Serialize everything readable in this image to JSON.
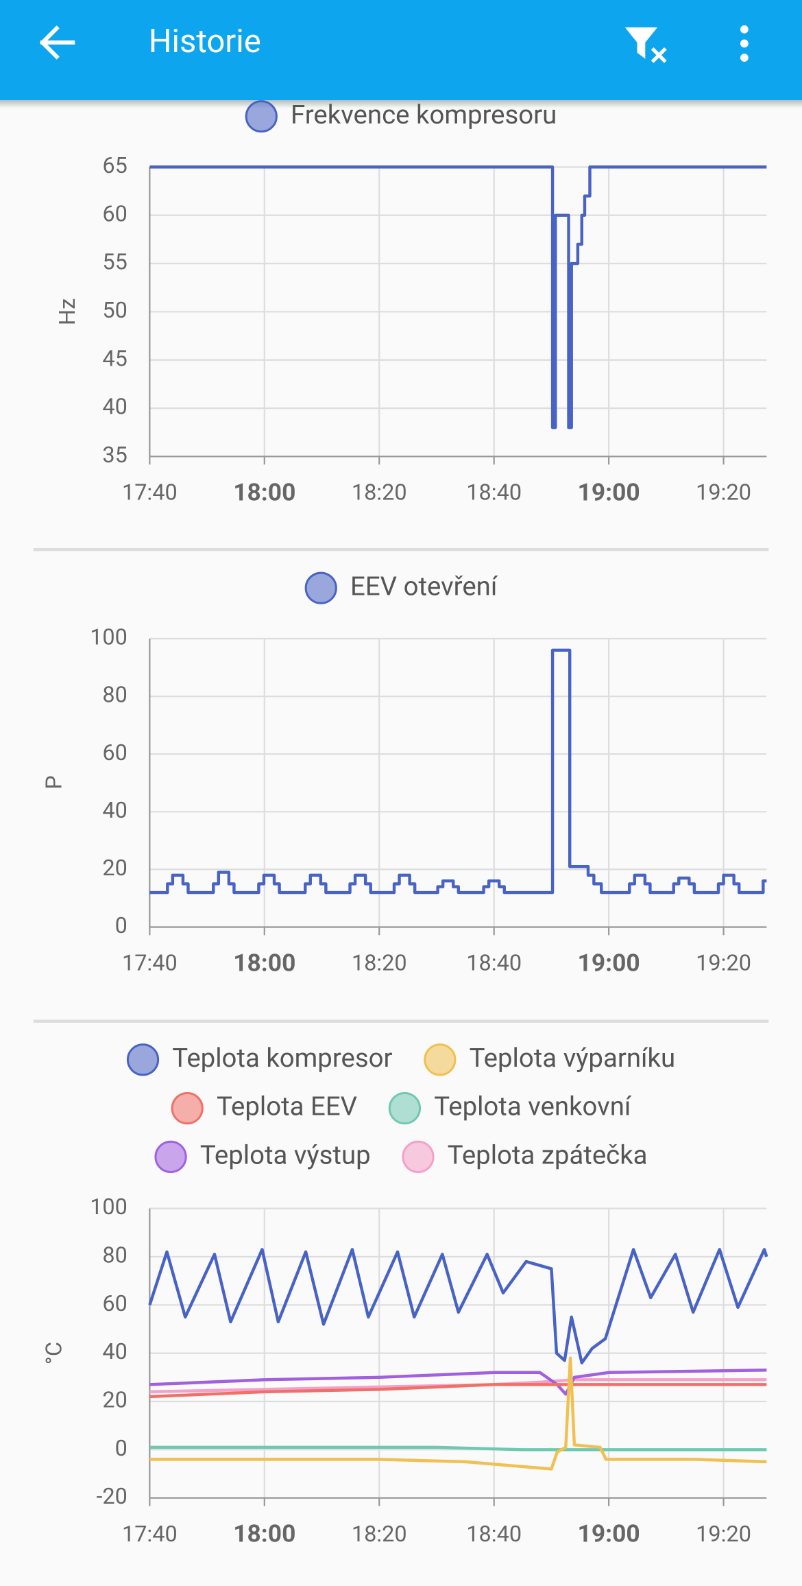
{
  "header": {
    "title": "Historie"
  },
  "chart_data": [
    {
      "type": "line",
      "y_label": "Hz",
      "x": [
        1060,
        1130.2,
        1130.2,
        1130.7,
        1130.7,
        1133,
        1133,
        1133.5,
        1133.5,
        1134.6,
        1134.6,
        1135.3,
        1135.3,
        1135.8,
        1135.8,
        1136.7,
        1136.7,
        1167.5
      ],
      "series": [
        {
          "name": "Frekvence kompresoru",
          "color": "#4863c4",
          "values": [
            65,
            65,
            38,
            38,
            60,
            60,
            38,
            38,
            55,
            55,
            57,
            57,
            60,
            60,
            62,
            62,
            65,
            65
          ]
        }
      ],
      "xlim": [
        1060,
        1167.5
      ],
      "ylim": [
        35,
        65
      ],
      "xticks": [
        {
          "value": 1060,
          "label": "17:40"
        },
        {
          "value": 1080,
          "label": "18:00"
        },
        {
          "value": 1100,
          "label": "18:20"
        },
        {
          "value": 1120,
          "label": "18:40"
        },
        {
          "value": 1140,
          "label": "19:00"
        },
        {
          "value": 1160,
          "label": "19:20"
        }
      ],
      "yticks": [
        35,
        40,
        45,
        50,
        55,
        60,
        65
      ],
      "grid": true
    },
    {
      "type": "line",
      "y_label": "P",
      "x": [
        1060,
        1063.1,
        1063.1,
        1064,
        1064,
        1065.8,
        1065.8,
        1066.7,
        1066.7,
        1071.1,
        1071.1,
        1072,
        1072,
        1073.8,
        1073.8,
        1074.7,
        1074.7,
        1079,
        1079,
        1079.9,
        1079.9,
        1081.7,
        1081.7,
        1082.6,
        1082.6,
        1087.1,
        1087.1,
        1088,
        1088,
        1089.8,
        1089.8,
        1090.7,
        1090.7,
        1094.9,
        1094.9,
        1095.8,
        1095.8,
        1097.6,
        1097.6,
        1098.5,
        1098.5,
        1102.6,
        1102.6,
        1103.5,
        1103.5,
        1105.3,
        1105.3,
        1106.2,
        1106.2,
        1110.2,
        1110.2,
        1111.1,
        1111.1,
        1112.9,
        1112.9,
        1113.8,
        1113.8,
        1118.2,
        1118.2,
        1119.1,
        1119.1,
        1120.9,
        1120.9,
        1121.8,
        1121.8,
        1130.2,
        1130.2,
        1133.2,
        1133.2,
        1136.4,
        1136.4,
        1137.4,
        1137.4,
        1138.7,
        1138.7,
        1143.6,
        1143.6,
        1144.5,
        1144.5,
        1146.3,
        1146.3,
        1147.2,
        1147.2,
        1151.3,
        1151.3,
        1152.2,
        1152.2,
        1154,
        1154,
        1154.9,
        1154.9,
        1159.1,
        1159.1,
        1160,
        1160,
        1161.8,
        1161.8,
        1162.7,
        1162.7,
        1166.9,
        1166.9,
        1167.5
      ],
      "series": [
        {
          "name": "EEV otevření",
          "color": "#4863c4",
          "values": [
            12,
            12,
            15,
            15,
            18,
            18,
            15,
            15,
            12,
            12,
            15,
            15,
            19,
            19,
            15,
            15,
            12,
            12,
            15,
            15,
            18,
            18,
            15,
            15,
            12,
            12,
            15,
            15,
            18,
            18,
            15,
            15,
            12,
            12,
            15,
            15,
            18,
            18,
            15,
            15,
            12,
            12,
            15,
            15,
            18,
            18,
            15,
            15,
            12,
            12,
            14,
            14,
            16,
            16,
            14,
            14,
            12,
            12,
            14,
            14,
            16,
            16,
            14,
            14,
            12,
            12,
            96,
            96,
            21,
            21,
            18,
            18,
            15,
            15,
            12,
            12,
            15,
            15,
            18,
            18,
            15,
            15,
            12,
            12,
            15,
            15,
            17,
            17,
            15,
            15,
            12,
            12,
            15,
            15,
            18,
            18,
            15,
            15,
            12,
            12,
            16,
            16
          ]
        }
      ],
      "xlim": [
        1060,
        1167.5
      ],
      "ylim": [
        0,
        100
      ],
      "xticks": [
        {
          "value": 1060,
          "label": "17:40"
        },
        {
          "value": 1080,
          "label": "18:00"
        },
        {
          "value": 1100,
          "label": "18:20"
        },
        {
          "value": 1120,
          "label": "18:40"
        },
        {
          "value": 1140,
          "label": "19:00"
        },
        {
          "value": 1160,
          "label": "19:20"
        }
      ],
      "yticks": [
        0,
        20,
        40,
        60,
        80,
        100
      ],
      "grid": true
    },
    {
      "type": "line",
      "y_label": "°C",
      "series": [
        {
          "name": "Teplota kompresor",
          "color": "#4863c4",
          "x": [
            1060,
            1063,
            1066.2,
            1071.3,
            1074.1,
            1079.6,
            1082.4,
            1087.2,
            1090.3,
            1095.3,
            1098.1,
            1103.2,
            1106.1,
            1111,
            1113.8,
            1118.8,
            1121.6,
            1125.6,
            1130,
            1130.9,
            1132.3,
            1133.5,
            1135.3,
            1137.1,
            1139.4,
            1144.3,
            1147.3,
            1151.6,
            1154.7,
            1159.3,
            1162.5,
            1167.1,
            1167.5
          ],
          "values": [
            60,
            82,
            55,
            81,
            53,
            83,
            53,
            82,
            52,
            83,
            55,
            82,
            55,
            81,
            57,
            81,
            65,
            78,
            75,
            40,
            37,
            55,
            36,
            42,
            46,
            83,
            63,
            81,
            57,
            83,
            59,
            83,
            80
          ]
        },
        {
          "name": "Teplota výparníku",
          "color": "#f0c050",
          "x": [
            1060,
            1080,
            1100,
            1115,
            1125,
            1130,
            1131,
            1132.5,
            1133.3,
            1134,
            1138.5,
            1139.5,
            1155,
            1167.5
          ],
          "values": [
            -4,
            -4,
            -4,
            -5,
            -7,
            -8,
            -1,
            1,
            38,
            2,
            1,
            -4,
            -4,
            -5
          ]
        },
        {
          "name": "Teplota EEV",
          "color": "#f07068",
          "x": [
            1060,
            1080,
            1100,
            1120,
            1133,
            1167.5
          ],
          "values": [
            22,
            24,
            25,
            27,
            27,
            27
          ]
        },
        {
          "name": "Teplota venkovní",
          "color": "#70c8b0",
          "x": [
            1060,
            1110,
            1125,
            1167.5
          ],
          "values": [
            1,
            1,
            0,
            0
          ]
        },
        {
          "name": "Teplota výstup",
          "color": "#a060e0",
          "x": [
            1060,
            1080,
            1100,
            1120,
            1128,
            1131,
            1132.5,
            1134,
            1140,
            1167.5
          ],
          "values": [
            27,
            29,
            30,
            32,
            32,
            27,
            23,
            30,
            32,
            33
          ]
        },
        {
          "name": "Teplota zpátečka",
          "color": "#f4a0c8",
          "x": [
            1060,
            1080,
            1100,
            1120,
            1128,
            1134,
            1167.5
          ],
          "values": [
            24,
            25,
            26,
            27,
            28,
            29,
            29
          ]
        }
      ],
      "xlim": [
        1060,
        1167.5
      ],
      "ylim": [
        -20,
        100
      ],
      "xticks": [
        {
          "value": 1060,
          "label": "17:40"
        },
        {
          "value": 1080,
          "label": "18:00"
        },
        {
          "value": 1100,
          "label": "18:20"
        },
        {
          "value": 1120,
          "label": "18:40"
        },
        {
          "value": 1140,
          "label": "19:00"
        },
        {
          "value": 1160,
          "label": "19:20"
        }
      ],
      "yticks": [
        -20,
        0,
        20,
        40,
        60,
        80,
        100
      ],
      "grid": true
    }
  ]
}
